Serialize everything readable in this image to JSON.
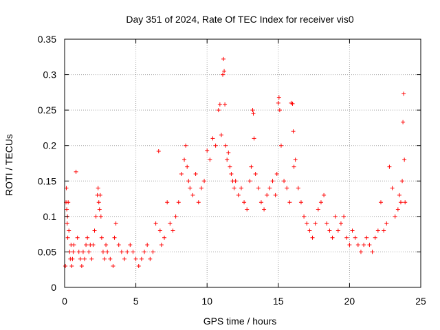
{
  "chart_data": {
    "type": "scatter",
    "title": "Day 351 of 2024, Rate Of TEC Index for receiver vis0",
    "xlabel": "GPS time / hours",
    "ylabel": "ROTI / TECUs",
    "xlim": [
      0,
      25
    ],
    "ylim": [
      0,
      0.35
    ],
    "xticks": [
      0,
      5,
      10,
      15,
      20,
      25
    ],
    "yticks": [
      0,
      0.05,
      0.1,
      0.15,
      0.2,
      0.25,
      0.3,
      0.35
    ],
    "xtick_labels": [
      "0",
      "5",
      "10",
      "15",
      "20",
      "25"
    ],
    "ytick_labels": [
      "0",
      "0.05",
      "0.1",
      "0.15",
      "0.2",
      "0.25",
      "0.3",
      "0.35"
    ],
    "grid": true,
    "marker": "+",
    "series_color": "#ff0000",
    "series": [
      {
        "name": "vis0",
        "x": [
          0.05,
          0.1,
          0.12,
          0.15,
          0.18,
          0.2,
          0.22,
          0.25,
          0.3,
          0.35,
          0.4,
          0.45,
          0.5,
          0.55,
          0.6,
          0.65,
          0.8,
          0.9,
          1.0,
          1.1,
          1.2,
          1.3,
          1.4,
          1.5,
          1.6,
          1.7,
          1.8,
          1.9,
          2.0,
          2.1,
          2.2,
          2.3,
          2.35,
          2.4,
          2.45,
          2.5,
          2.55,
          2.6,
          2.7,
          2.8,
          2.9,
          3.0,
          3.2,
          3.4,
          3.5,
          3.6,
          3.8,
          4.0,
          4.2,
          4.4,
          4.6,
          4.8,
          5.0,
          5.2,
          5.4,
          5.6,
          5.8,
          6.0,
          6.2,
          6.4,
          6.6,
          6.7,
          6.8,
          7.0,
          7.2,
          7.4,
          7.6,
          7.8,
          8.0,
          8.2,
          8.4,
          8.5,
          8.6,
          8.7,
          8.8,
          9.0,
          9.2,
          9.4,
          9.6,
          9.8,
          10.0,
          10.2,
          10.4,
          10.6,
          10.8,
          10.9,
          11.0,
          11.1,
          11.15,
          11.2,
          11.25,
          11.3,
          11.4,
          11.5,
          11.6,
          11.7,
          11.8,
          11.9,
          12.0,
          12.2,
          12.4,
          12.6,
          12.8,
          13.0,
          13.1,
          13.2,
          13.25,
          13.3,
          13.4,
          13.6,
          13.8,
          14.0,
          14.2,
          14.4,
          14.6,
          14.8,
          14.9,
          15.0,
          15.05,
          15.1,
          15.2,
          15.4,
          15.6,
          15.8,
          15.9,
          16.0,
          16.05,
          16.1,
          16.2,
          16.4,
          16.6,
          16.8,
          17.0,
          17.2,
          17.4,
          17.6,
          17.8,
          18.0,
          18.2,
          18.4,
          18.6,
          18.8,
          19.0,
          19.2,
          19.4,
          19.6,
          19.8,
          20.0,
          20.2,
          20.4,
          20.6,
          20.8,
          21.0,
          21.2,
          21.4,
          21.6,
          21.8,
          22.0,
          22.2,
          22.4,
          22.6,
          22.8,
          23.0,
          23.2,
          23.4,
          23.5,
          23.6,
          23.7,
          23.75,
          23.8,
          23.85,
          23.9
        ],
        "y": [
          0.03,
          0.12,
          0.14,
          0.11,
          0.09,
          0.1,
          0.07,
          0.12,
          0.08,
          0.05,
          0.04,
          0.06,
          0.03,
          0.04,
          0.05,
          0.06,
          0.163,
          0.07,
          0.05,
          0.04,
          0.03,
          0.05,
          0.04,
          0.06,
          0.07,
          0.05,
          0.06,
          0.04,
          0.06,
          0.08,
          0.1,
          0.13,
          0.14,
          0.12,
          0.11,
          0.13,
          0.1,
          0.07,
          0.05,
          0.04,
          0.06,
          0.05,
          0.04,
          0.03,
          0.07,
          0.09,
          0.06,
          0.05,
          0.04,
          0.05,
          0.06,
          0.05,
          0.04,
          0.03,
          0.04,
          0.05,
          0.06,
          0.04,
          0.05,
          0.09,
          0.192,
          0.08,
          0.06,
          0.07,
          0.12,
          0.09,
          0.08,
          0.1,
          0.12,
          0.16,
          0.18,
          0.2,
          0.17,
          0.15,
          0.14,
          0.13,
          0.16,
          0.12,
          0.14,
          0.15,
          0.193,
          0.18,
          0.21,
          0.2,
          0.25,
          0.258,
          0.215,
          0.3,
          0.322,
          0.305,
          0.258,
          0.2,
          0.18,
          0.19,
          0.17,
          0.16,
          0.15,
          0.14,
          0.15,
          0.13,
          0.14,
          0.12,
          0.11,
          0.15,
          0.17,
          0.25,
          0.245,
          0.21,
          0.16,
          0.14,
          0.12,
          0.11,
          0.13,
          0.14,
          0.15,
          0.13,
          0.16,
          0.26,
          0.268,
          0.25,
          0.2,
          0.15,
          0.14,
          0.12,
          0.26,
          0.259,
          0.22,
          0.17,
          0.18,
          0.14,
          0.12,
          0.1,
          0.09,
          0.08,
          0.07,
          0.09,
          0.11,
          0.12,
          0.13,
          0.09,
          0.08,
          0.07,
          0.1,
          0.08,
          0.09,
          0.1,
          0.07,
          0.06,
          0.08,
          0.07,
          0.06,
          0.05,
          0.06,
          0.07,
          0.06,
          0.05,
          0.07,
          0.08,
          0.12,
          0.08,
          0.09,
          0.17,
          0.14,
          0.1,
          0.11,
          0.13,
          0.12,
          0.15,
          0.233,
          0.273,
          0.18,
          0.12
        ]
      }
    ]
  }
}
